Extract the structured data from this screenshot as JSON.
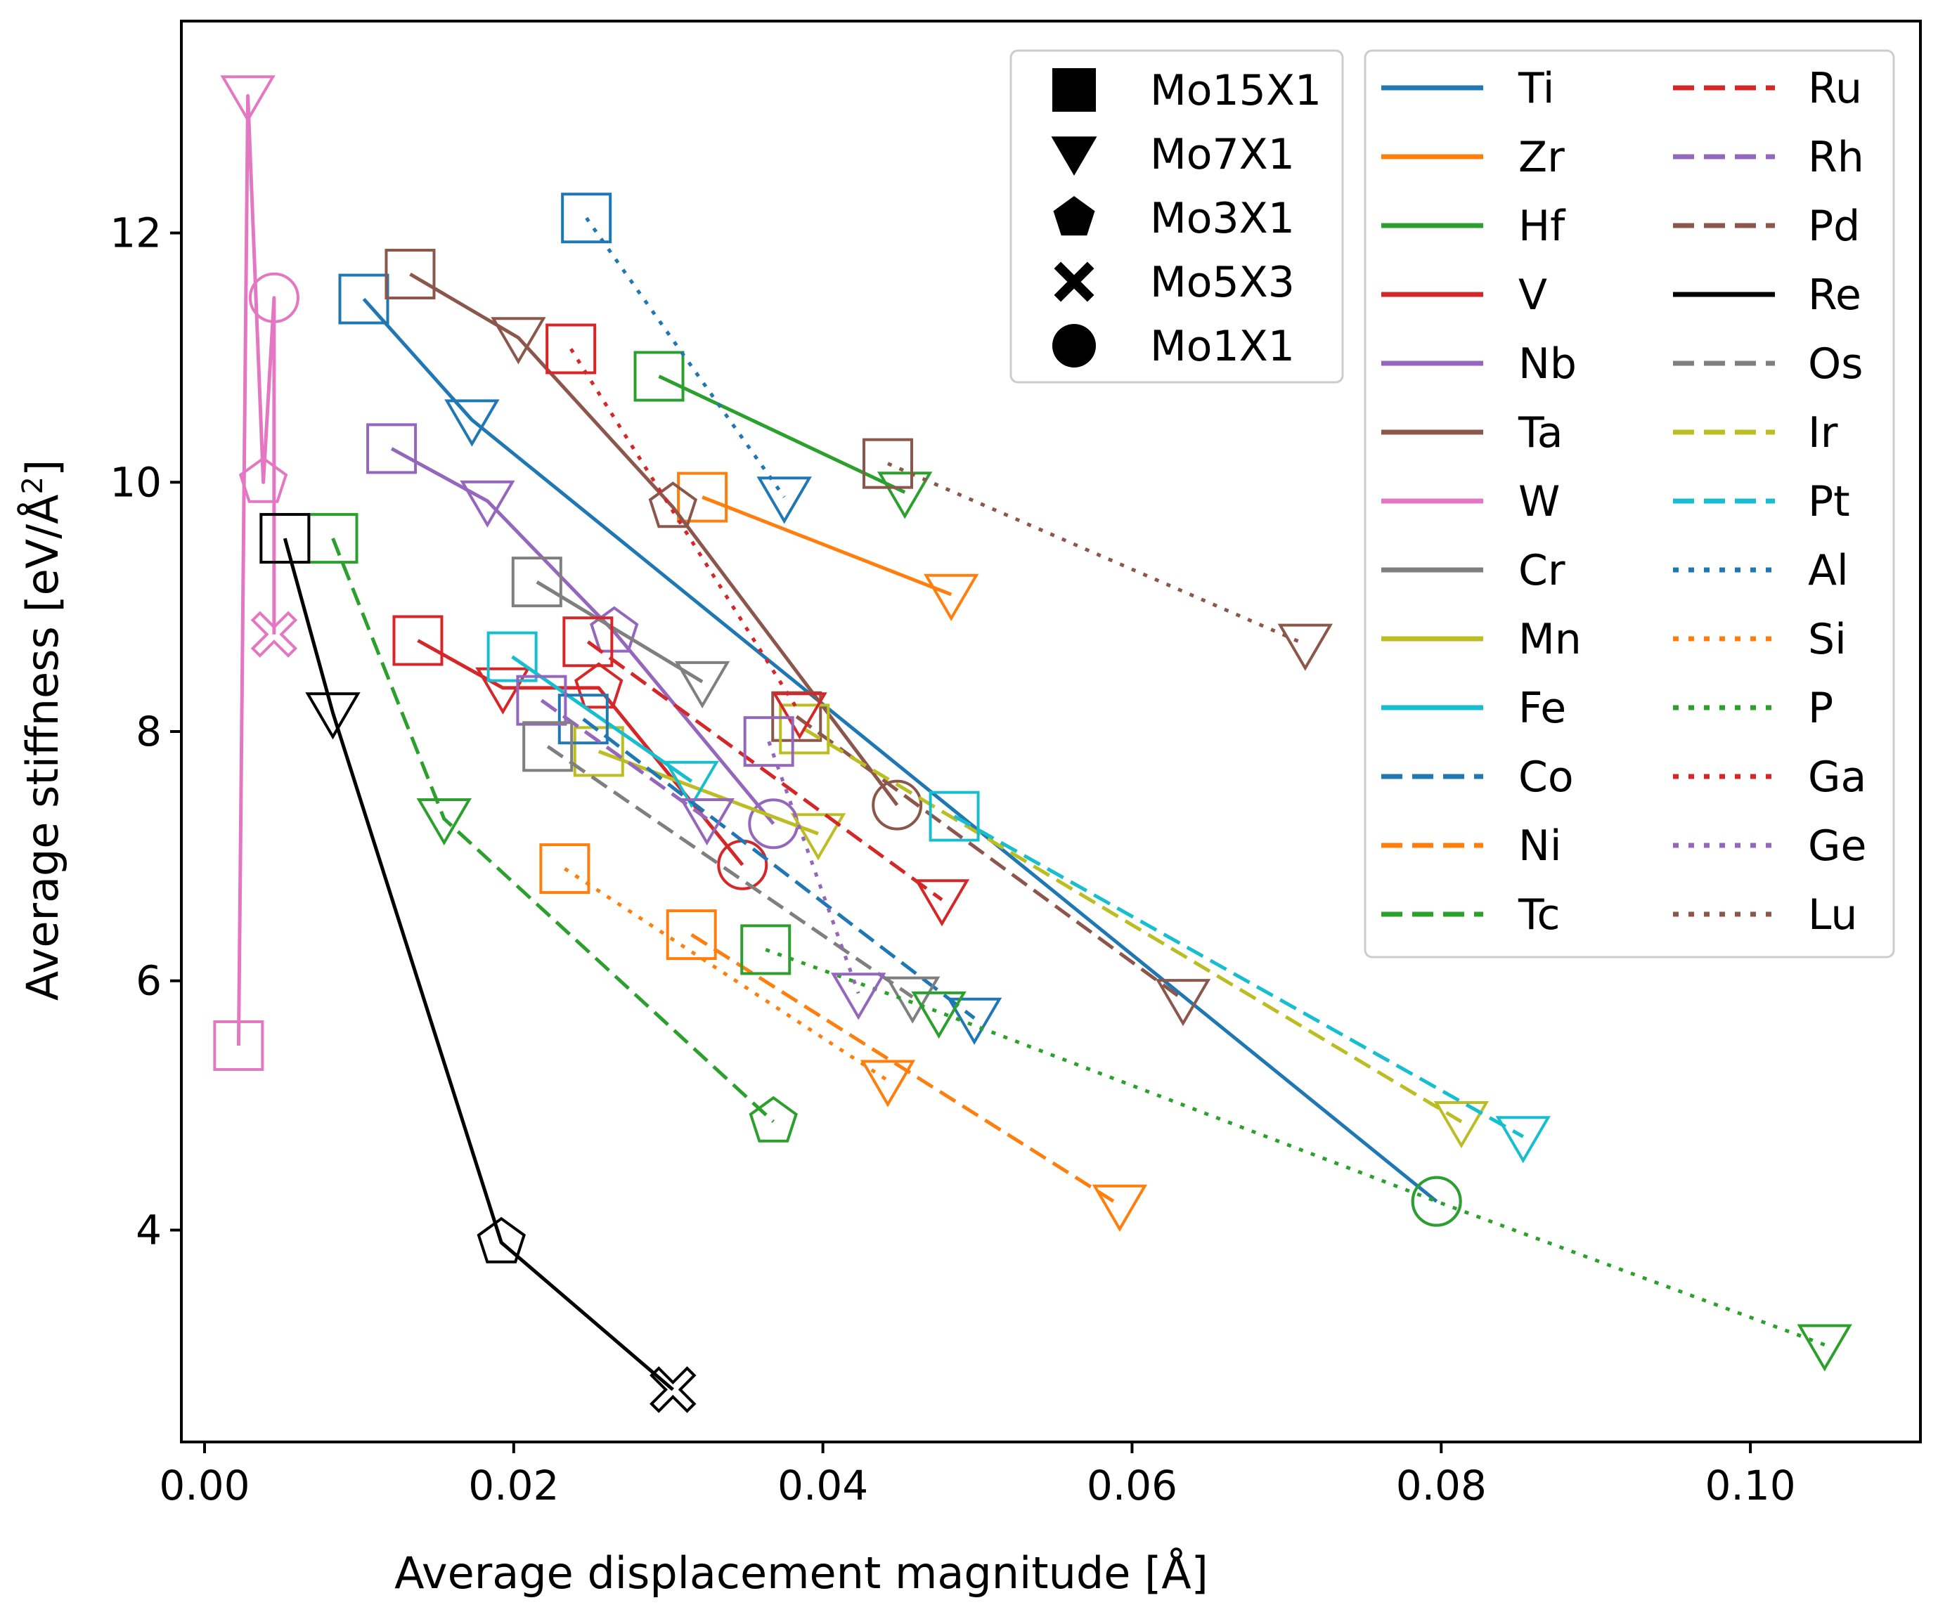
{
  "chart_data": {
    "type": "line",
    "title": "",
    "xlabel": "Average displacement magnitude [Å]",
    "ylabel_main": "Average stiffness [eV/Å",
    "ylabel_sup": "2",
    "ylabel_end": "]",
    "xlim": [
      -0.0015,
      0.111
    ],
    "ylim": [
      2.3,
      13.7
    ],
    "xticks": [
      0.0,
      0.02,
      0.04,
      0.06,
      0.08,
      0.1
    ],
    "xtick_labels": [
      "0.00",
      "0.02",
      "0.04",
      "0.06",
      "0.08",
      "0.10"
    ],
    "yticks": [
      4,
      6,
      8,
      10,
      12
    ],
    "ytick_labels": [
      "4",
      "6",
      "8",
      "10",
      "12"
    ],
    "grid": false,
    "marker_legend": [
      {
        "label": "Mo15X1",
        "marker": "square"
      },
      {
        "label": "Mo7X1",
        "marker": "triangle"
      },
      {
        "label": "Mo3X1",
        "marker": "pentagon"
      },
      {
        "label": "Mo5X3",
        "marker": "x"
      },
      {
        "label": "Mo1X1",
        "marker": "circle"
      }
    ],
    "series": [
      {
        "name": "Ti",
        "color": "#1f77b4",
        "dash": "solid",
        "points": [
          {
            "m": "square",
            "x": 0.0103,
            "y": 11.47
          },
          {
            "m": "triangle",
            "x": 0.0173,
            "y": 10.5
          },
          {
            "m": "circle",
            "x": 0.0797,
            "y": 4.23
          }
        ]
      },
      {
        "name": "Zr",
        "color": "#ff7f0e",
        "dash": "solid",
        "points": [
          {
            "m": "square",
            "x": 0.0322,
            "y": 9.88
          },
          {
            "m": "triangle",
            "x": 0.0483,
            "y": 9.1
          }
        ]
      },
      {
        "name": "Hf",
        "color": "#2ca02c",
        "dash": "solid",
        "points": [
          {
            "m": "square",
            "x": 0.0294,
            "y": 10.85
          },
          {
            "m": "triangle",
            "x": 0.0453,
            "y": 9.92
          }
        ]
      },
      {
        "name": "V",
        "color": "#d62728",
        "dash": "solid",
        "points": [
          {
            "m": "square",
            "x": 0.0138,
            "y": 8.73
          },
          {
            "m": "triangle",
            "x": 0.0193,
            "y": 8.35
          },
          {
            "m": "pentagon",
            "x": 0.0255,
            "y": 8.35
          },
          {
            "m": "circle",
            "x": 0.0348,
            "y": 6.93
          }
        ]
      },
      {
        "name": "Nb",
        "color": "#9467bd",
        "dash": "solid",
        "points": [
          {
            "m": "square",
            "x": 0.0121,
            "y": 10.27
          },
          {
            "m": "triangle",
            "x": 0.0183,
            "y": 9.85
          },
          {
            "m": "pentagon",
            "x": 0.0265,
            "y": 8.8
          },
          {
            "m": "circle",
            "x": 0.0368,
            "y": 7.26
          }
        ]
      },
      {
        "name": "Ta",
        "color": "#8c564b",
        "dash": "solid",
        "points": [
          {
            "m": "square",
            "x": 0.0133,
            "y": 11.67
          },
          {
            "m": "triangle",
            "x": 0.0203,
            "y": 11.16
          },
          {
            "m": "pentagon",
            "x": 0.0303,
            "y": 9.8
          },
          {
            "m": "circle",
            "x": 0.0448,
            "y": 7.41
          }
        ]
      },
      {
        "name": "W",
        "color": "#e377c2",
        "dash": "solid",
        "points": [
          {
            "m": "square",
            "x": 0.0022,
            "y": 5.48
          },
          {
            "m": "triangle",
            "x": 0.0028,
            "y": 13.1
          },
          {
            "m": "pentagon",
            "x": 0.0038,
            "y": 10.0
          },
          {
            "m": "circle",
            "x": 0.0045,
            "y": 11.48
          },
          {
            "m": "x",
            "x": 0.0045,
            "y": 8.78
          }
        ]
      },
      {
        "name": "Cr",
        "color": "#7f7f7f",
        "dash": "solid",
        "points": [
          {
            "m": "square",
            "x": 0.0215,
            "y": 9.2
          },
          {
            "m": "triangle",
            "x": 0.0322,
            "y": 8.4
          }
        ]
      },
      {
        "name": "Mn",
        "color": "#bcbd22",
        "dash": "solid",
        "points": [
          {
            "m": "square",
            "x": 0.0255,
            "y": 7.84
          },
          {
            "m": "triangle",
            "x": 0.0397,
            "y": 7.18
          }
        ]
      },
      {
        "name": "Fe",
        "color": "#17becf",
        "dash": "solid",
        "points": [
          {
            "m": "square",
            "x": 0.0199,
            "y": 8.6
          },
          {
            "m": "triangle",
            "x": 0.0315,
            "y": 7.6
          }
        ]
      },
      {
        "name": "Co",
        "color": "#1f77b4",
        "dash": "dashed",
        "points": [
          {
            "m": "square",
            "x": 0.0245,
            "y": 8.1
          },
          {
            "m": "triangle",
            "x": 0.0498,
            "y": 5.7
          }
        ]
      },
      {
        "name": "Ni",
        "color": "#ff7f0e",
        "dash": "dashed",
        "points": [
          {
            "m": "square",
            "x": 0.0315,
            "y": 6.37
          },
          {
            "m": "triangle",
            "x": 0.0592,
            "y": 4.2
          }
        ]
      },
      {
        "name": "Tc",
        "color": "#2ca02c",
        "dash": "dashed",
        "points": [
          {
            "m": "square",
            "x": 0.0083,
            "y": 9.55
          },
          {
            "m": "triangle",
            "x": 0.0155,
            "y": 7.3
          },
          {
            "m": "pentagon",
            "x": 0.0368,
            "y": 4.87
          }
        ]
      },
      {
        "name": "Ru",
        "color": "#d62728",
        "dash": "dashed",
        "points": [
          {
            "m": "square",
            "x": 0.0248,
            "y": 8.72
          },
          {
            "m": "triangle",
            "x": 0.0477,
            "y": 6.65
          }
        ]
      },
      {
        "name": "Rh",
        "color": "#9467bd",
        "dash": "dashed",
        "points": [
          {
            "m": "square",
            "x": 0.0218,
            "y": 8.25
          },
          {
            "m": "triangle",
            "x": 0.0325,
            "y": 7.3
          }
        ]
      },
      {
        "name": "Pd",
        "color": "#8c564b",
        "dash": "dashed",
        "points": [
          {
            "m": "square",
            "x": 0.0383,
            "y": 8.12
          },
          {
            "m": "triangle",
            "x": 0.0633,
            "y": 5.85
          }
        ]
      },
      {
        "name": "Re",
        "color": "#000000",
        "dash": "solid",
        "points": [
          {
            "m": "square",
            "x": 0.0052,
            "y": 9.55
          },
          {
            "m": "triangle",
            "x": 0.0083,
            "y": 8.15
          },
          {
            "m": "pentagon",
            "x": 0.0192,
            "y": 3.9
          },
          {
            "m": "x",
            "x": 0.0303,
            "y": 2.72
          }
        ]
      },
      {
        "name": "Os",
        "color": "#7f7f7f",
        "dash": "dashed",
        "points": [
          {
            "m": "square",
            "x": 0.0222,
            "y": 7.88
          },
          {
            "m": "triangle",
            "x": 0.0458,
            "y": 5.87
          }
        ]
      },
      {
        "name": "Ir",
        "color": "#bcbd22",
        "dash": "dashed",
        "points": [
          {
            "m": "square",
            "x": 0.0388,
            "y": 8.02
          },
          {
            "m": "triangle",
            "x": 0.0813,
            "y": 4.87
          }
        ]
      },
      {
        "name": "Pt",
        "color": "#17becf",
        "dash": "dashed",
        "points": [
          {
            "m": "square",
            "x": 0.0485,
            "y": 7.32
          },
          {
            "m": "triangle",
            "x": 0.0853,
            "y": 4.75
          }
        ]
      },
      {
        "name": "Al",
        "color": "#1f77b4",
        "dash": "dotted",
        "points": [
          {
            "m": "square",
            "x": 0.0247,
            "y": 12.12
          },
          {
            "m": "triangle",
            "x": 0.0375,
            "y": 9.88
          }
        ]
      },
      {
        "name": "Si",
        "color": "#ff7f0e",
        "dash": "dotted",
        "points": [
          {
            "m": "square",
            "x": 0.0233,
            "y": 6.9
          },
          {
            "m": "triangle",
            "x": 0.0442,
            "y": 5.2
          }
        ]
      },
      {
        "name": "P",
        "color": "#2ca02c",
        "dash": "dotted",
        "points": [
          {
            "m": "square",
            "x": 0.0363,
            "y": 6.25
          },
          {
            "m": "triangle",
            "x": 0.0475,
            "y": 5.75
          },
          {
            "m": "circle",
            "x": 0.0797,
            "y": 4.23
          },
          {
            "m": "triangle",
            "x": 0.1048,
            "y": 3.08
          }
        ]
      },
      {
        "name": "Ga",
        "color": "#d62728",
        "dash": "dotted",
        "points": [
          {
            "m": "square",
            "x": 0.0237,
            "y": 11.07
          },
          {
            "m": "triangle",
            "x": 0.0385,
            "y": 8.15
          }
        ]
      },
      {
        "name": "Ge",
        "color": "#9467bd",
        "dash": "dotted",
        "points": [
          {
            "m": "square",
            "x": 0.0365,
            "y": 7.92
          },
          {
            "m": "triangle",
            "x": 0.0423,
            "y": 5.9
          }
        ]
      },
      {
        "name": "Lu",
        "color": "#8c564b",
        "dash": "dotted",
        "points": [
          {
            "m": "square",
            "x": 0.0442,
            "y": 10.15
          },
          {
            "m": "triangle",
            "x": 0.0712,
            "y": 8.7
          }
        ]
      }
    ]
  }
}
